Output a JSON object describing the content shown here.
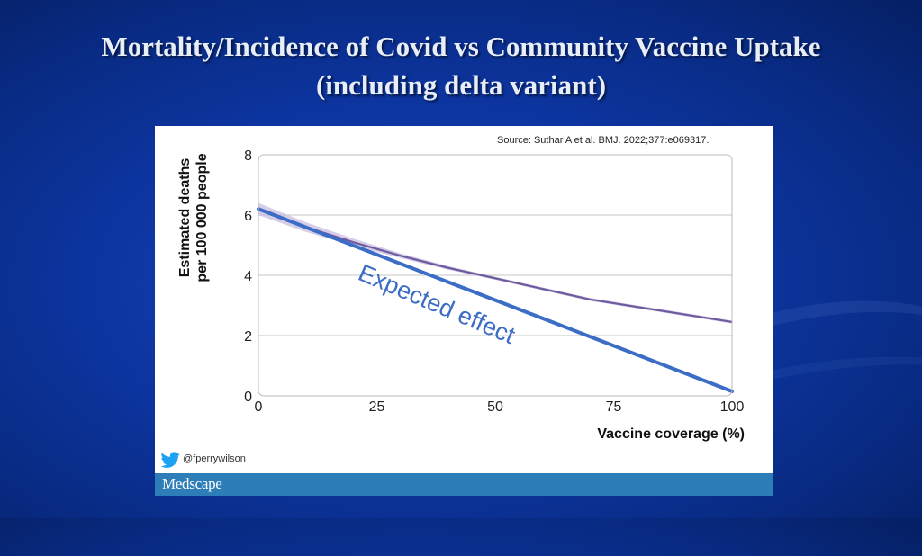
{
  "slide": {
    "title_line1": "Mortality/Incidence of Covid vs Community Vaccine Uptake",
    "title_line2": "(including delta variant)"
  },
  "source_note": "Source: Suthar A et al. BMJ. 2022;377:e069317.",
  "twitter_handle": "@fperrywilson",
  "brand": "Medscape",
  "colors": {
    "observed": "#6e5a9e",
    "observed_band": "#c8bde0",
    "expected": "#3b6cc6",
    "annotation": "#3b6cc6",
    "footer_bar": "#2c7db8",
    "twitter": "#1da1f2"
  },
  "chart_data": {
    "type": "line",
    "xlabel": "Vaccine coverage (%)",
    "ylabel_line1": "Estimated deaths",
    "ylabel_line2": "per 100 000 people",
    "xlim": [
      0,
      100
    ],
    "ylim": [
      0,
      8
    ],
    "xticks": [
      "0",
      "25",
      "50",
      "75",
      "100"
    ],
    "yticks": [
      "0",
      "2",
      "4",
      "6",
      "8"
    ],
    "grid": true,
    "annotation": "Expected effect",
    "series": [
      {
        "x": [
          0,
          10,
          20,
          30,
          40,
          50,
          60,
          70,
          80,
          90,
          100
        ],
        "y": [
          6.2,
          5.6,
          5.1,
          4.65,
          4.25,
          3.9,
          3.55,
          3.2,
          2.95,
          2.7,
          2.45
        ],
        "band_halfwidth": [
          0.2,
          0.16,
          0.12,
          0.08,
          0.06,
          0.05,
          0.05,
          0.05,
          0.05,
          0.05,
          0.05
        ],
        "style": "observed"
      },
      {
        "x": [
          0,
          100
        ],
        "y": [
          6.2,
          0.15
        ],
        "style": "expected"
      }
    ]
  }
}
